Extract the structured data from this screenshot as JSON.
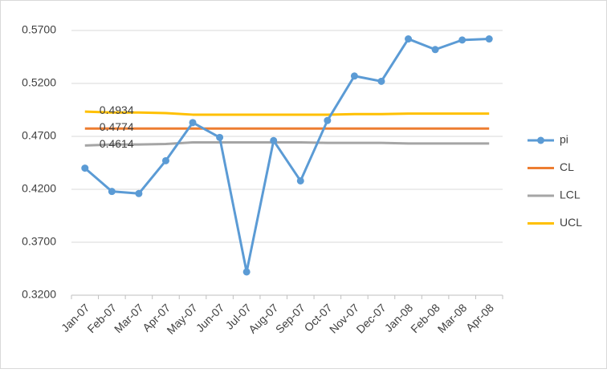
{
  "chart_data": {
    "type": "line",
    "categories": [
      "Jan-07",
      "Feb-07",
      "Mar-07",
      "Apr-07",
      "May-07",
      "Jun-07",
      "Jul-07",
      "Aug-07",
      "Sep-07",
      "Oct-07",
      "Nov-07",
      "Dec-07",
      "Jan-08",
      "Feb-08",
      "Mar-08",
      "Apr-08"
    ],
    "series": [
      {
        "name": "pi",
        "color": "#5b9bd5",
        "markers": true,
        "values": [
          0.44,
          0.418,
          0.416,
          0.447,
          0.483,
          0.469,
          0.342,
          0.466,
          0.428,
          0.485,
          0.527,
          0.522,
          0.562,
          0.552,
          0.561,
          0.562
        ]
      },
      {
        "name": "CL",
        "color": "#ed7d31",
        "markers": false,
        "label_first": true,
        "values": [
          0.4774,
          0.4774,
          0.4774,
          0.4774,
          0.4774,
          0.4774,
          0.4774,
          0.4774,
          0.4774,
          0.4774,
          0.4774,
          0.4774,
          0.4774,
          0.4774,
          0.4774,
          0.4774
        ]
      },
      {
        "name": "LCL",
        "color": "#a5a5a5",
        "markers": false,
        "label_first": true,
        "values": [
          0.4614,
          0.4623,
          0.4623,
          0.4628,
          0.4643,
          0.4643,
          0.4643,
          0.4643,
          0.4643,
          0.4638,
          0.4638,
          0.4638,
          0.4633,
          0.4633,
          0.4633,
          0.4633
        ]
      },
      {
        "name": "UCL",
        "color": "#ffc000",
        "markers": false,
        "label_first": true,
        "values": [
          0.4934,
          0.4925,
          0.4925,
          0.492,
          0.4905,
          0.4905,
          0.4905,
          0.4905,
          0.4905,
          0.4905,
          0.491,
          0.491,
          0.4915,
          0.4915,
          0.4915,
          0.4915
        ]
      }
    ],
    "ylim": [
      0.32,
      0.57
    ],
    "yticks": [
      {
        "value": 0.32,
        "label": "0.3200"
      },
      {
        "value": 0.37,
        "label": "0.3700"
      },
      {
        "value": 0.42,
        "label": "0.4200"
      },
      {
        "value": 0.47,
        "label": "0.4700"
      },
      {
        "value": 0.52,
        "label": "0.5200"
      },
      {
        "value": 0.57,
        "label": "0.5700"
      }
    ],
    "grid": true,
    "legend": "right"
  }
}
